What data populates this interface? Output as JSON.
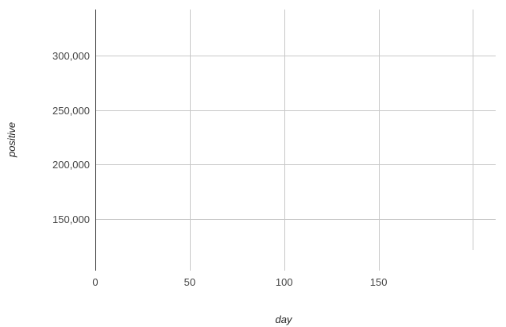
{
  "chart_data": {
    "type": "scatter",
    "title": "",
    "xlabel": "day",
    "ylabel": "positive",
    "xlim": [
      0,
      212
    ],
    "ylim": [
      103000,
      342000
    ],
    "x_ticks": [
      0,
      50,
      100,
      150,
      200
    ],
    "x_tick_labels": [
      "0",
      "50",
      "100",
      "150",
      ""
    ],
    "y_ticks": [
      150000,
      200000,
      250000,
      300000
    ],
    "y_tick_labels": [
      "150,000",
      "200,000",
      "250,000",
      "300,000"
    ],
    "grid": true,
    "series": [],
    "colors": {
      "grid": "#c8c8c8",
      "axis": "#333333",
      "text": "#444444"
    }
  }
}
